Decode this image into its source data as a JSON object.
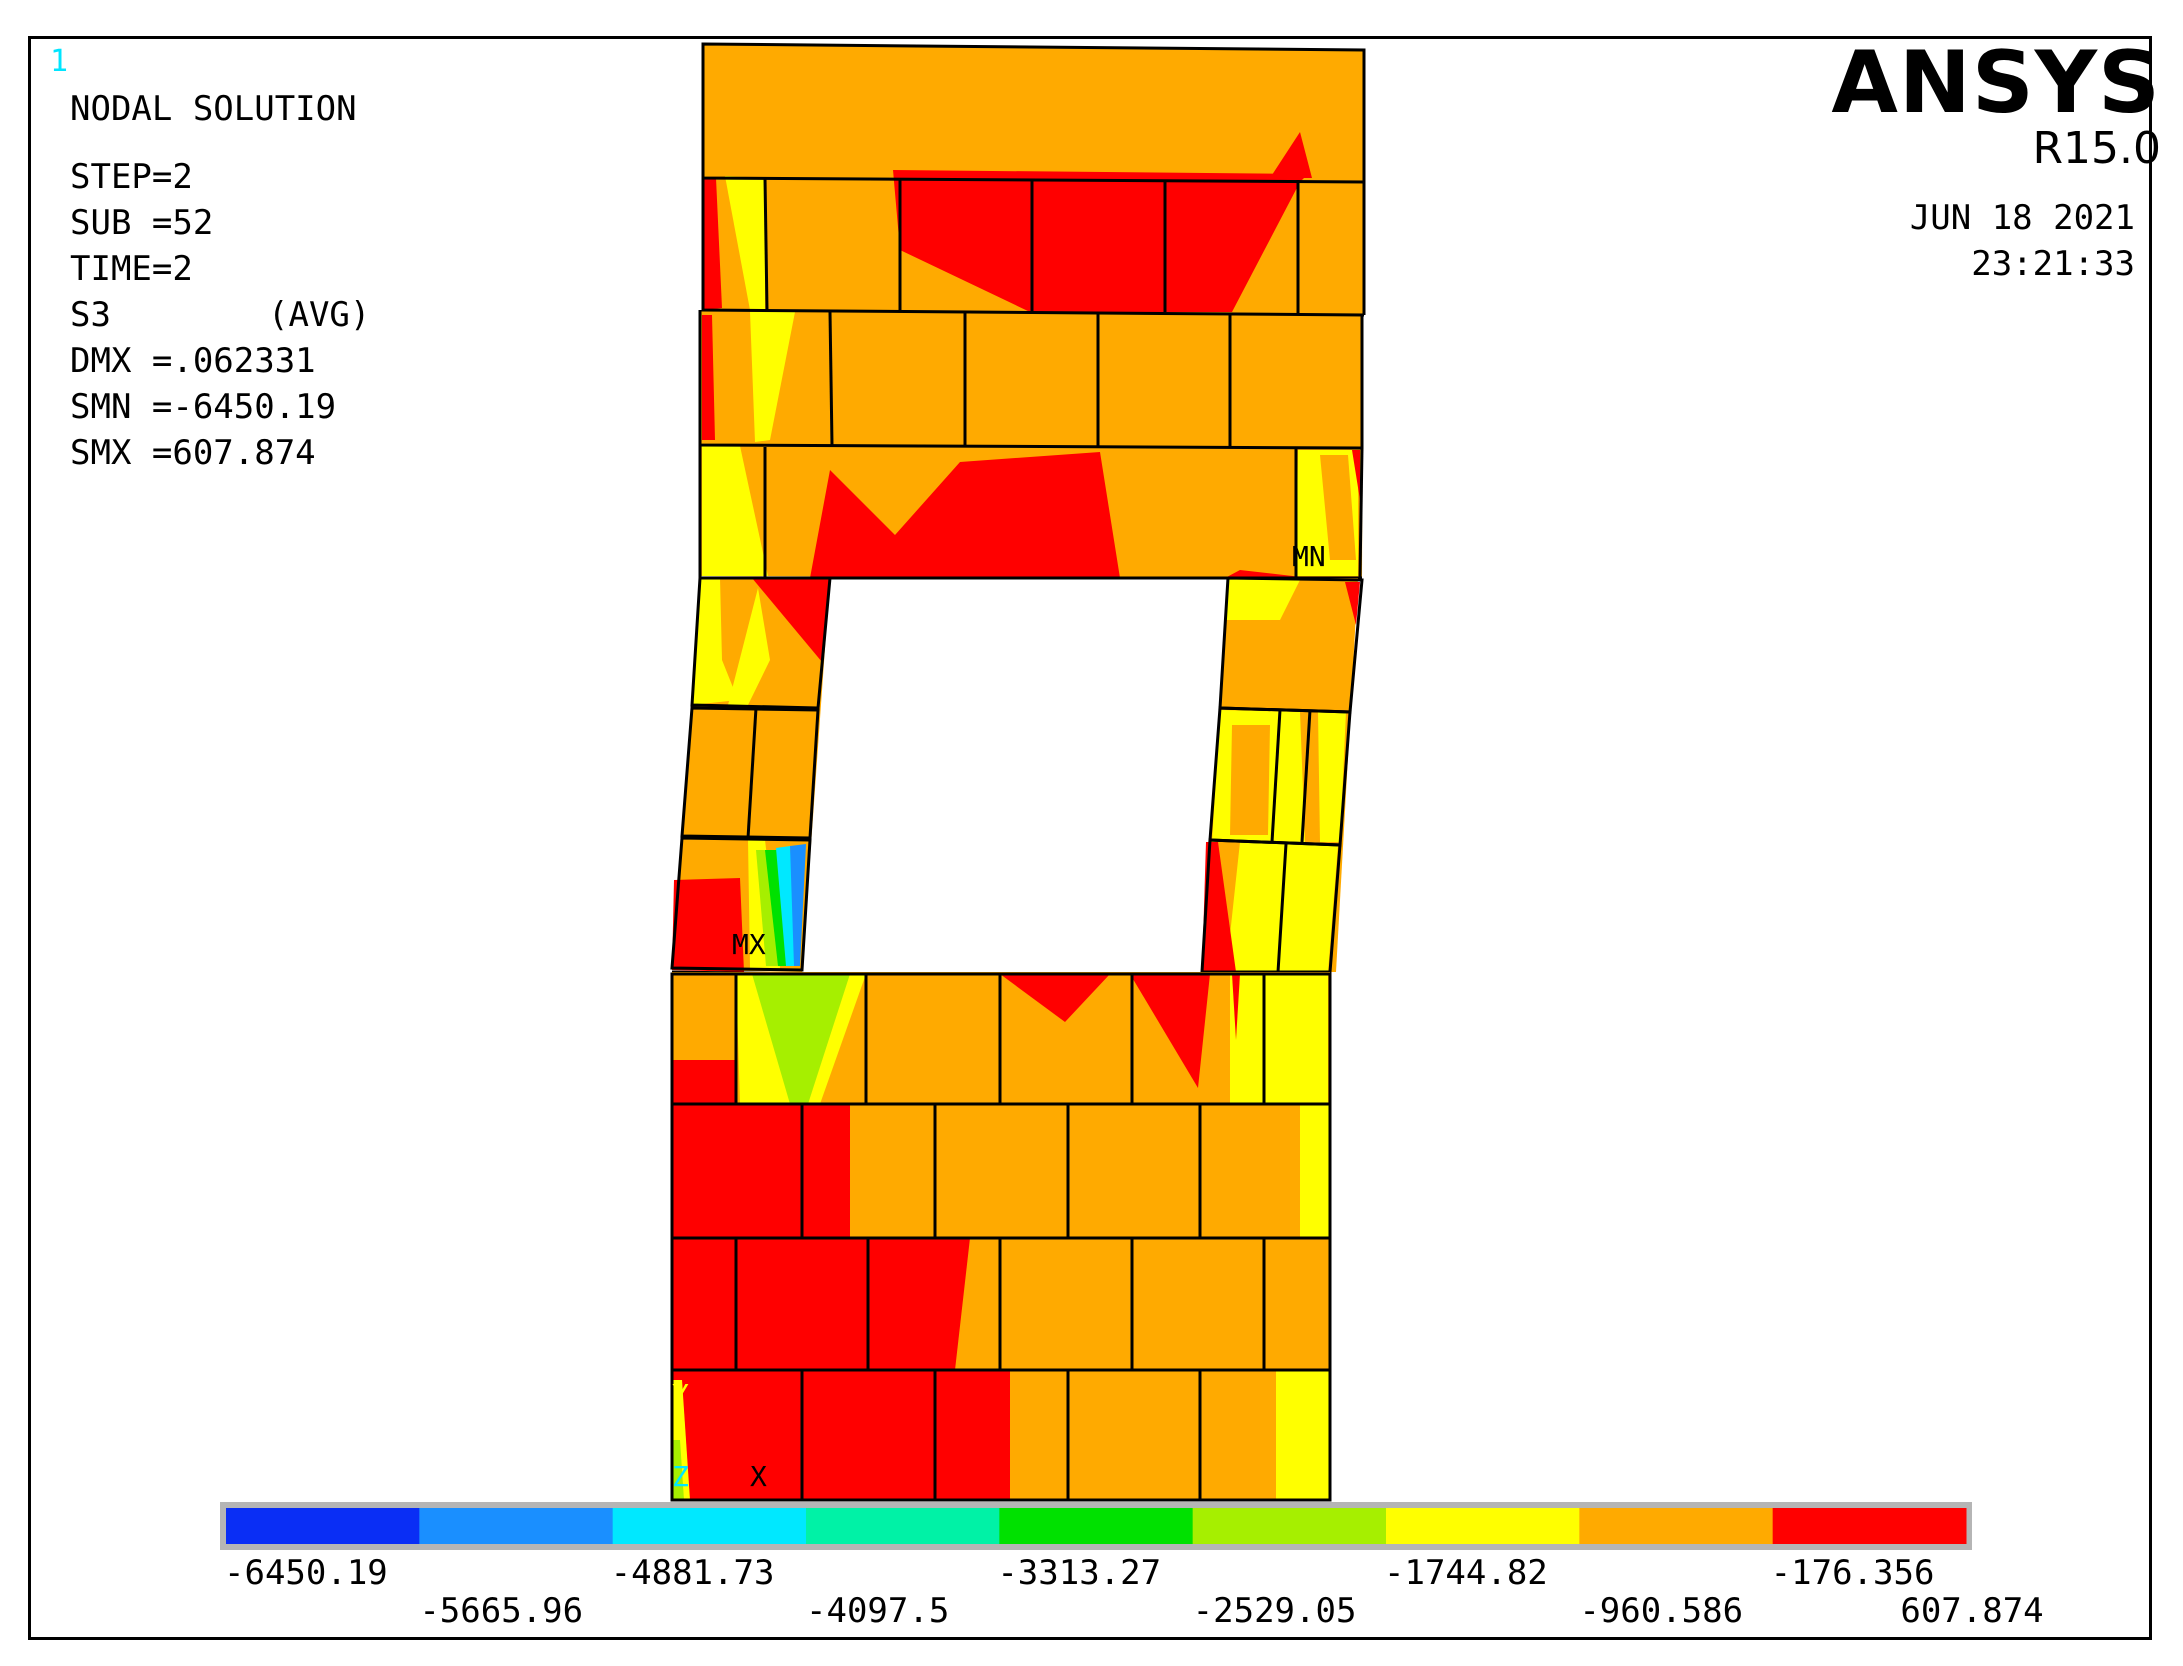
{
  "window_number": "1",
  "header": {
    "title": "NODAL SOLUTION",
    "step": "STEP=2",
    "sub": "SUB =52",
    "time": "TIME=2",
    "component": "S3",
    "avg": "(AVG)",
    "dmx": "DMX =.062331",
    "smn": "SMN =-6450.19",
    "smx": "SMX =607.874"
  },
  "brand": {
    "name": "ANSYS",
    "version": "R15.0",
    "date": "JUN 18 2021",
    "time": "23:21:33"
  },
  "markers": {
    "mn": "MN",
    "mx": "MX",
    "axis_y": "Y",
    "axis_z": "Z",
    "axis_x": "X"
  },
  "colors": {
    "band1": "#0a2ef5",
    "band2": "#1a8fff",
    "band3": "#00e8ff",
    "band4": "#00f2a6",
    "band5": "#00e100",
    "band6": "#a6ef00",
    "band7": "#ffff00",
    "band8": "#ffaa00",
    "band9": "#ff0000",
    "orange": "#ffaa00",
    "red": "#ff0000",
    "yellow": "#ffff00",
    "lime": "#a6ef00"
  },
  "legend": {
    "bands": [
      "#0a2ef5",
      "#1a8fff",
      "#00e8ff",
      "#00f2a6",
      "#00e100",
      "#a6ef00",
      "#ffff00",
      "#ffaa00",
      "#ff0000"
    ],
    "labels_top": [
      "-6450.19",
      "-4881.73",
      "-3313.27",
      "-1744.82",
      "-176.356"
    ],
    "labels_bottom": [
      "-5665.96",
      "-4097.5",
      "-2529.05",
      "-960.586",
      "607.874"
    ]
  }
}
